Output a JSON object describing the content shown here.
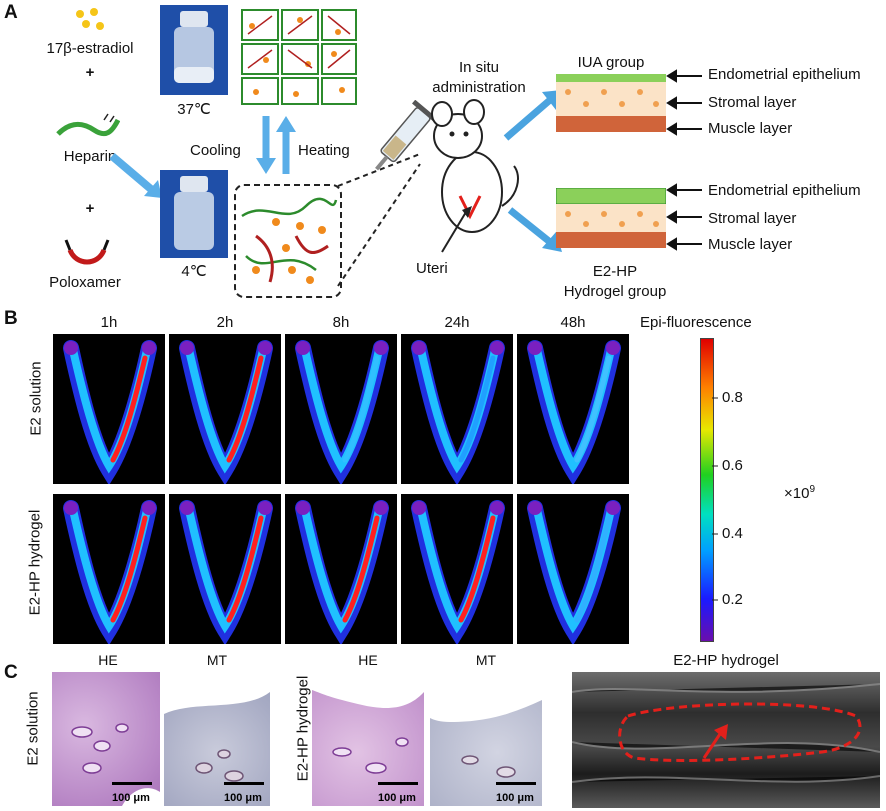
{
  "panels": {
    "a": "A",
    "b": "B",
    "c": "C"
  },
  "panel_a": {
    "ingredients": [
      "17β-estradiol",
      "+",
      "Heparin",
      "+",
      "Poloxamer"
    ],
    "temp_hot": "37℃",
    "temp_cold": "4℃",
    "cooling": "Cooling",
    "heating": "Heating",
    "administration": [
      "In situ",
      "administration"
    ],
    "uteri": "Uteri",
    "iua_group": "IUA group",
    "e2hp_group": [
      "E2-HP",
      "Hydrogel group"
    ],
    "layers_top": [
      "Endometrial epithelium",
      "Stromal layer",
      "Muscle layer"
    ],
    "layers_bottom": [
      "Endometrial epithelium",
      "Stromal layer",
      "Muscle layer"
    ]
  },
  "panel_b": {
    "timepoints": [
      "1h",
      "2h",
      "8h",
      "24h",
      "48h"
    ],
    "rows": [
      "E2 solution",
      "E2-HP hydrogel"
    ],
    "colorbar_title": "Epi-fluorescence",
    "colorbar_ticks": [
      "0.8",
      "0.6",
      "0.4",
      "0.2"
    ],
    "colorbar_unit": "×10",
    "colorbar_exp": "9"
  },
  "panel_c": {
    "stain_labels": [
      "HE",
      "MT",
      "HE",
      "MT"
    ],
    "rows": [
      "E2 solution",
      "E2-HP hydrogel"
    ],
    "scale_bar": "100 μm",
    "ultrasound_title": "E2-HP hydrogel"
  },
  "colors": {
    "red": "#e3201b",
    "blue_arrow": "#4aa3df",
    "histo_he": "#c9a3d4",
    "histo_mt": "#b9bdd3"
  }
}
